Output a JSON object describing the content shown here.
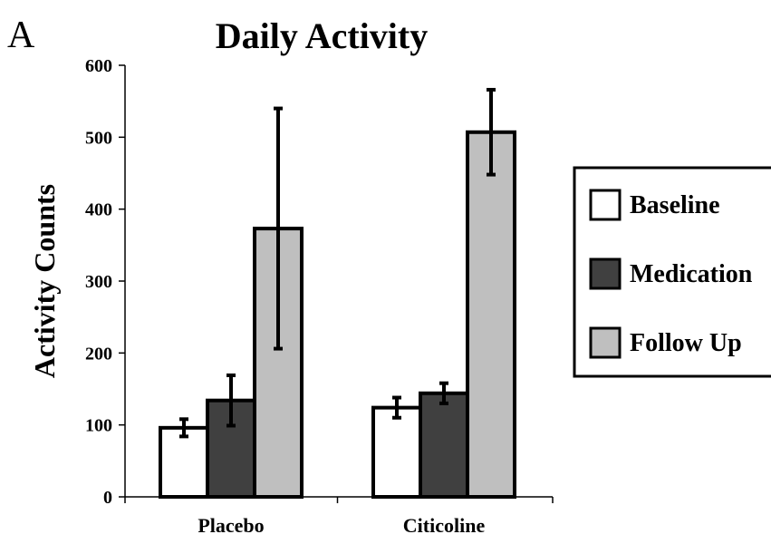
{
  "panel_label": "A",
  "chart_data": {
    "type": "bar",
    "title": "Daily Activity",
    "xlabel": "",
    "ylabel": "Activity Counts",
    "ylim": [
      0,
      600
    ],
    "yticks": [
      "0",
      "100",
      "200",
      "300",
      "400",
      "500",
      "600"
    ],
    "categories": [
      "Placebo",
      "Citicoline"
    ],
    "series": [
      {
        "name": "Baseline",
        "values": [
          96,
          124
        ],
        "errors": [
          12,
          14
        ],
        "color": "#ffffff"
      },
      {
        "name": "Medication",
        "values": [
          134,
          144
        ],
        "errors": [
          35,
          14
        ],
        "color": "#404040"
      },
      {
        "name": "Follow Up",
        "values": [
          373,
          507
        ],
        "errors": [
          167,
          59
        ],
        "color": "#bfbfbf"
      }
    ],
    "grid": false,
    "legend_position": "right"
  }
}
